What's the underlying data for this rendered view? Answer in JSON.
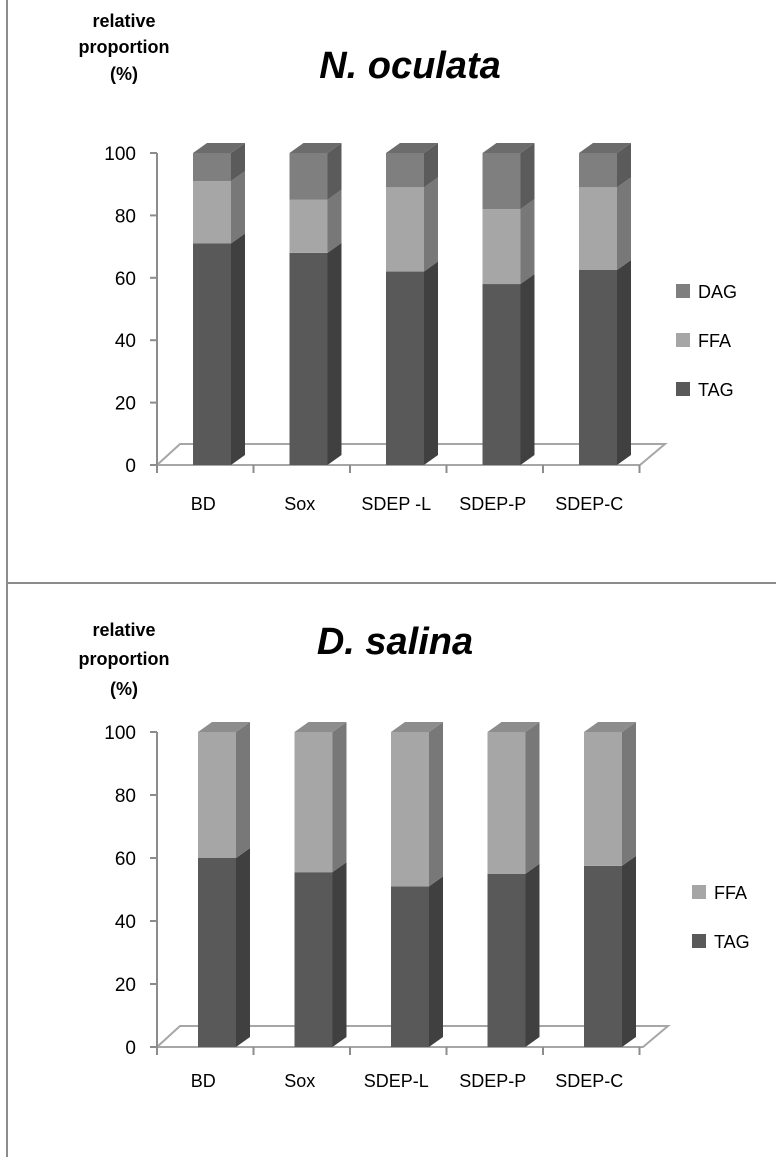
{
  "chart_data": [
    {
      "type": "bar",
      "stacked": true,
      "title": "N. oculata",
      "ylabel": [
        "relative",
        "proportion",
        "(%)"
      ],
      "xlabel": "",
      "ylim": [
        0,
        100
      ],
      "yticks": [
        0,
        20,
        40,
        60,
        80,
        100
      ],
      "categories": [
        "BD",
        "Sox",
        "SDEP -L",
        "SDEP-P",
        "SDEP-C"
      ],
      "series": [
        {
          "name": "TAG",
          "values": [
            71,
            68,
            62,
            58,
            62.5
          ],
          "color": "#595959"
        },
        {
          "name": "FFA",
          "values": [
            20,
            17,
            27,
            24,
            26.5
          ],
          "color": "#a6a6a6"
        },
        {
          "name": "DAG",
          "values": [
            9,
            15,
            11,
            18,
            11
          ],
          "color": "#7f7f7f"
        }
      ],
      "legend_position": "right",
      "legend_order": [
        "DAG",
        "FFA",
        "TAG"
      ],
      "grid": false,
      "style": "3d"
    },
    {
      "type": "bar",
      "stacked": true,
      "title": "D. salina",
      "ylabel": [
        "relative",
        "proportion",
        "(%)"
      ],
      "xlabel": "",
      "ylim": [
        0,
        100
      ],
      "yticks": [
        0,
        20,
        40,
        60,
        80,
        100
      ],
      "categories": [
        "BD",
        "Sox",
        "SDEP-L",
        "SDEP-P",
        "SDEP-C"
      ],
      "series": [
        {
          "name": "TAG",
          "values": [
            60,
            55.5,
            51,
            55,
            57.5
          ],
          "color": "#595959"
        },
        {
          "name": "FFA",
          "values": [
            40,
            44.5,
            49,
            45,
            42.5
          ],
          "color": "#a6a6a6"
        }
      ],
      "legend_position": "right",
      "legend_order": [
        "FFA",
        "TAG"
      ],
      "grid": false,
      "style": "3d"
    }
  ]
}
